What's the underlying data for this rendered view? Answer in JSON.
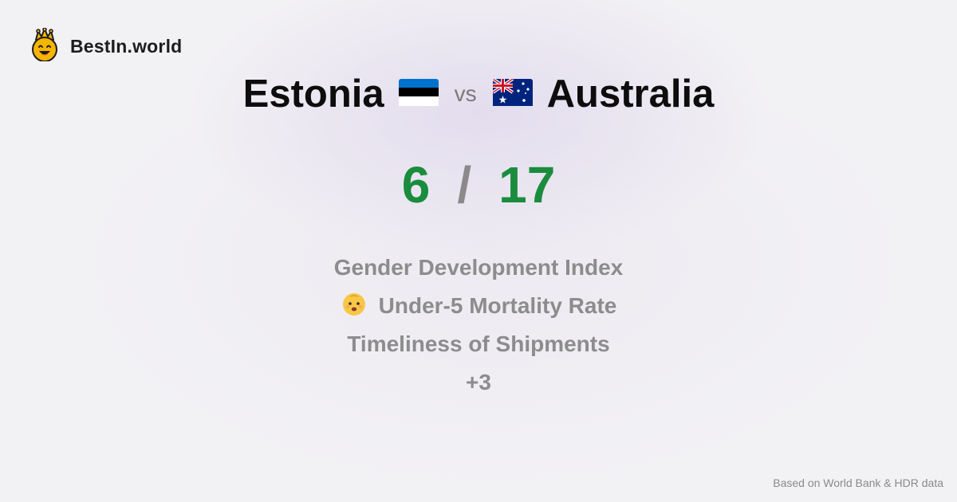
{
  "brand": {
    "name": "BestIn.world",
    "icon": "crown-smiley-icon"
  },
  "comparison": {
    "country_a": {
      "name": "Estonia",
      "flag": "estonia-flag-icon",
      "colors": [
        "#0072CE",
        "#000000",
        "#FFFFFF"
      ]
    },
    "vs_label": "vs",
    "country_b": {
      "name": "Australia",
      "flag": "australia-flag-icon",
      "colors": [
        "#00247D",
        "#CF142B",
        "#FFFFFF"
      ]
    }
  },
  "score": {
    "a": "6",
    "separator": "/",
    "b": "17",
    "color": "#1a8c3e"
  },
  "metrics": [
    {
      "label": "Gender Development Index"
    },
    {
      "label": "Under-5 Mortality Rate",
      "icon": "baby-face-icon"
    },
    {
      "label": "Timeliness of Shipments"
    },
    {
      "label": "+3"
    }
  ],
  "footer": {
    "source": "Based on World Bank & HDR data"
  }
}
